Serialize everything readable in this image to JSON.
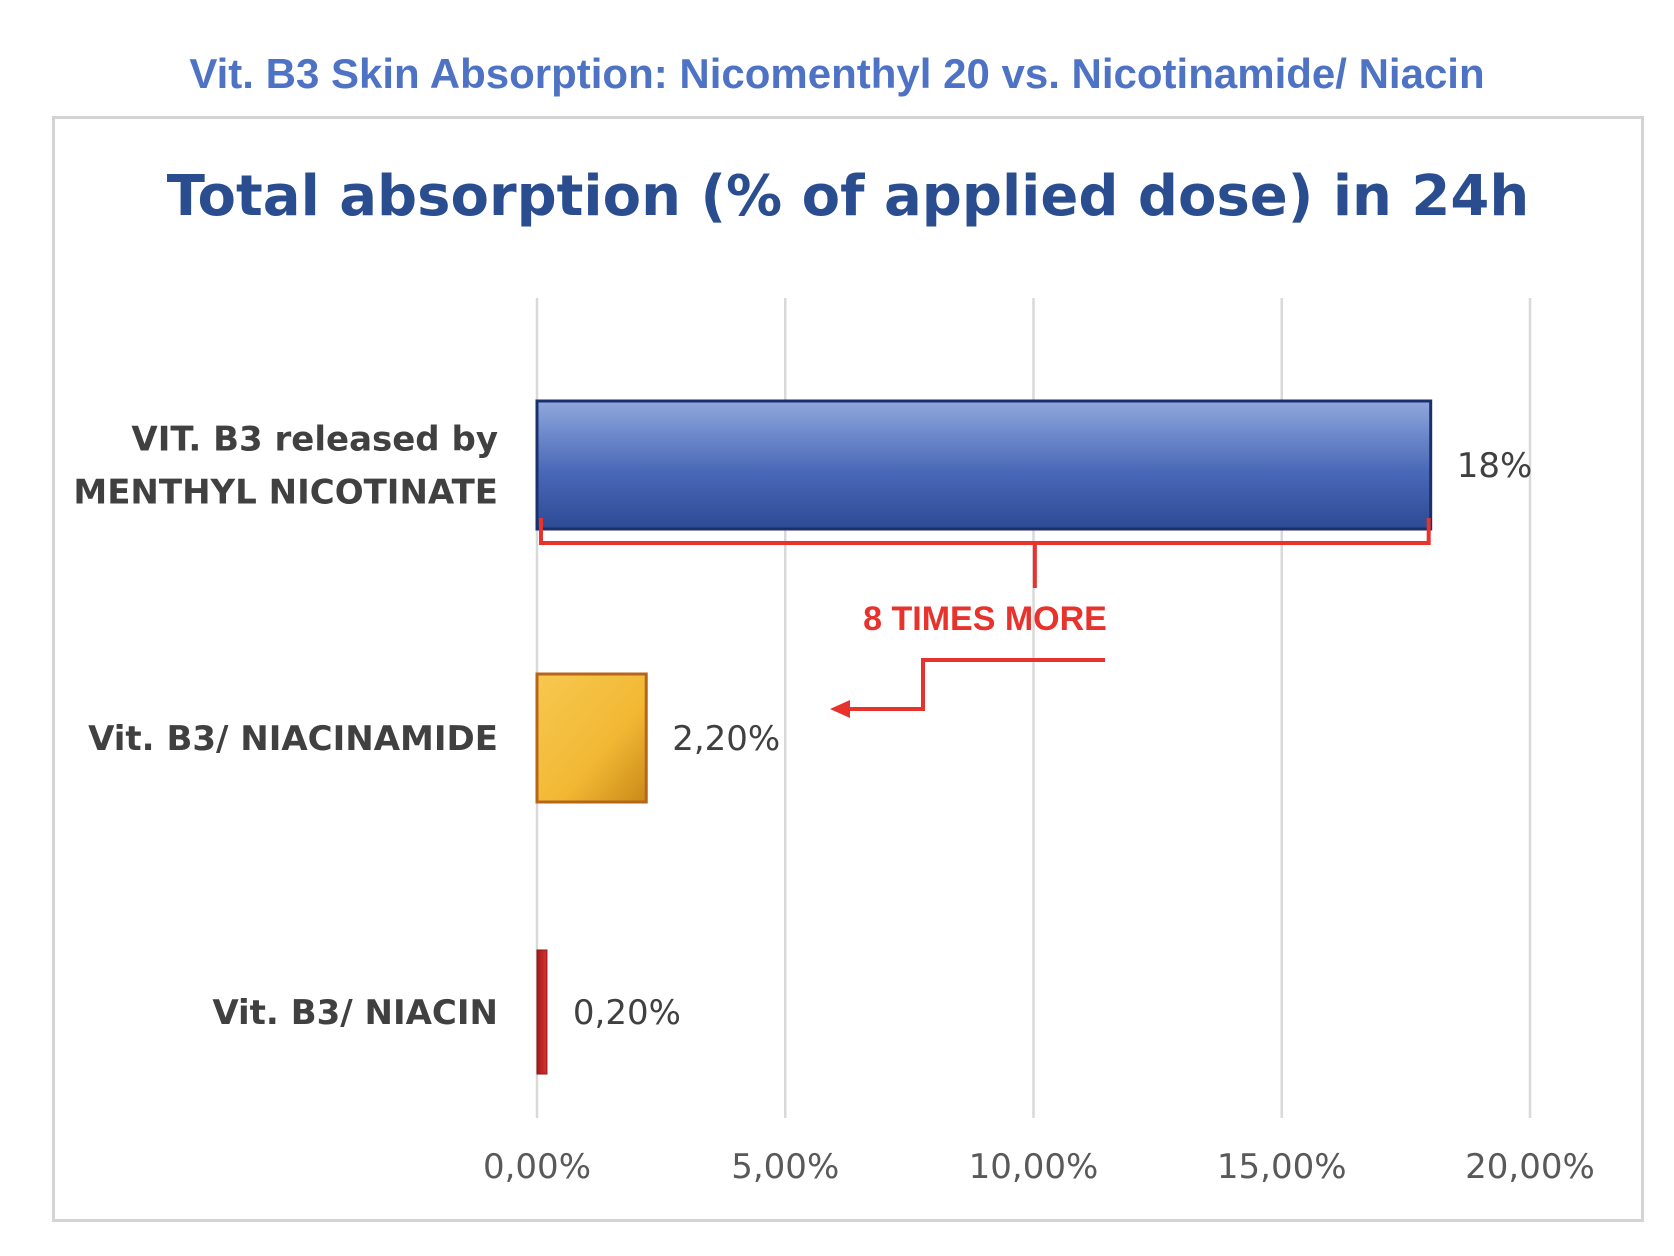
{
  "header": {
    "supertitle": "Vit. B3 Skin Absorption: Nicomenthyl 20 vs. Nicotinamide/ Niacin"
  },
  "colors": {
    "accent_blue": "#2a4d8f",
    "annotation_red": "#e8322c"
  },
  "chart_data": {
    "type": "bar",
    "orientation": "horizontal",
    "title": "Total absorption (% of applied dose) in 24h",
    "categories": [
      "VIT. B3 released by MENTHYL NICOTINATE",
      "Vit. B3/ NIACINAMIDE",
      "Vit. B3/ NIACIN"
    ],
    "category_lines": [
      [
        "VIT. B3 released by",
        "MENTHYL NICOTINATE"
      ],
      [
        "Vit. B3/ NIACINAMIDE"
      ],
      [
        "Vit. B3/ NIACIN"
      ]
    ],
    "values": [
      18,
      2.2,
      0.2
    ],
    "data_labels": [
      "18%",
      "2,20%",
      "0,20%"
    ],
    "bar_colors": [
      "#3f5fae",
      "#f0b836",
      "#c0282a"
    ],
    "xlim": [
      0,
      20
    ],
    "xticks": [
      0,
      5,
      10,
      15,
      20
    ],
    "xtick_labels": [
      "0,00%",
      "5,00%",
      "10,00%",
      "15,00%",
      "20,00%"
    ],
    "grid": "vertical",
    "annotation": {
      "text": "8 TIMES MORE",
      "from_category": 0,
      "to_category": 1
    }
  }
}
